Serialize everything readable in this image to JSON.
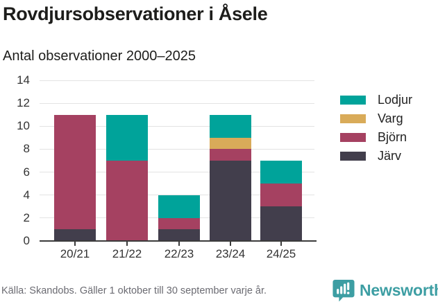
{
  "header": {
    "title": "Rovdjursobservationer i Åsele",
    "subtitle": "Antal observationer 2000–2025"
  },
  "chart_data": {
    "type": "bar",
    "stacked": true,
    "title": "Rovdjursobservationer i Åsele",
    "subtitle": "Antal observationer 2000–2025",
    "categories": [
      "20/21",
      "21/22",
      "22/23",
      "23/24",
      "24/25"
    ],
    "series": [
      {
        "name": "Järv",
        "color": "#423e4c",
        "values": [
          1,
          0,
          1,
          7,
          3
        ]
      },
      {
        "name": "Björn",
        "color": "#a54161",
        "values": [
          10,
          7,
          1,
          1,
          2
        ]
      },
      {
        "name": "Varg",
        "color": "#d9ab59",
        "values": [
          0,
          0,
          0,
          1,
          0
        ]
      },
      {
        "name": "Lodjur",
        "color": "#00a39a",
        "values": [
          0,
          4,
          2,
          2,
          2
        ]
      }
    ],
    "totals": [
      11,
      11,
      4,
      11,
      7
    ],
    "legend_order": [
      "Lodjur",
      "Varg",
      "Björn",
      "Järv"
    ],
    "legend_position": "right",
    "y_ticks": [
      0,
      2,
      4,
      6,
      8,
      10,
      12,
      14
    ],
    "ylim": [
      0,
      14
    ],
    "xlabel": "",
    "ylabel": "",
    "grid": "horizontal"
  },
  "colors": {
    "grid": "#e3e3e3",
    "axis": "#3b3b3b",
    "axis_label": "#333333",
    "text": "#1d1d1b",
    "footer_text": "#6b6b72",
    "brand_teal": "#3d9ea3"
  },
  "footer": {
    "source": "Källa: Skandobs. Gäller 1 oktober till 30 september varje år.",
    "logo_text": "Newsworthy"
  },
  "icons": {
    "logo_badge": "newsworthy-speech-bubble-bar-chart-icon"
  }
}
